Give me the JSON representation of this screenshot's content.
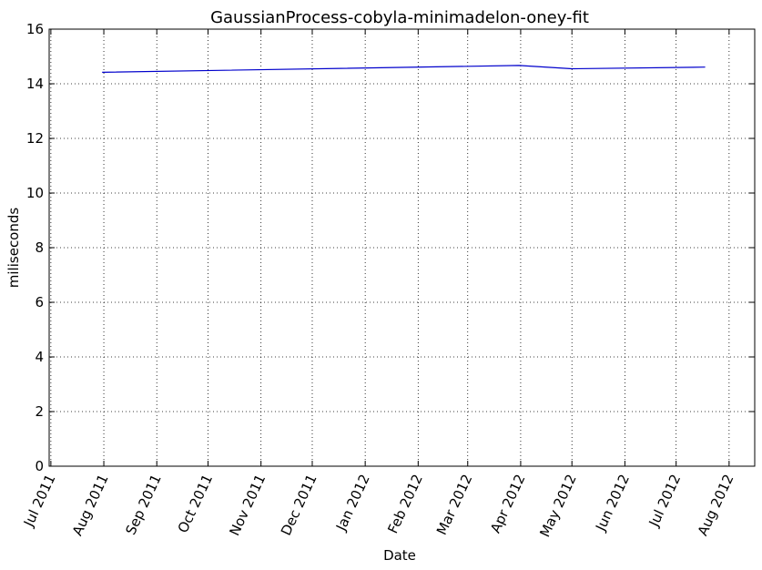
{
  "chart_data": {
    "type": "line",
    "title": "GaussianProcess-cobyla-minimadelon-oney-fit",
    "xlabel": "Date",
    "ylabel": "miliseconds",
    "x_tick_labels": [
      "Jul 2011",
      "Aug 2011",
      "Sep 2011",
      "Oct 2011",
      "Nov 2011",
      "Dec 2011",
      "Jan 2012",
      "Feb 2012",
      "Mar 2012",
      "Apr 2012",
      "May 2012",
      "Jun 2012",
      "Jul 2012",
      "Aug 2012"
    ],
    "x_tick_dates": [
      "2011-07-01",
      "2011-08-01",
      "2011-09-01",
      "2011-10-01",
      "2011-11-01",
      "2011-12-01",
      "2012-01-01",
      "2012-02-01",
      "2012-03-01",
      "2012-04-01",
      "2012-05-01",
      "2012-06-01",
      "2012-07-01",
      "2012-08-01"
    ],
    "xlim": [
      "2011-06-30",
      "2012-08-16"
    ],
    "ylim": [
      0,
      16
    ],
    "y_ticks": [
      0,
      2,
      4,
      6,
      8,
      10,
      12,
      14,
      16
    ],
    "grid": true,
    "series": [
      {
        "color": "#0000cc",
        "x": [
          "2011-07-31",
          "2012-03-31",
          "2012-05-01",
          "2012-07-18"
        ],
        "y": [
          14.42,
          14.67,
          14.55,
          14.61
        ]
      }
    ]
  }
}
